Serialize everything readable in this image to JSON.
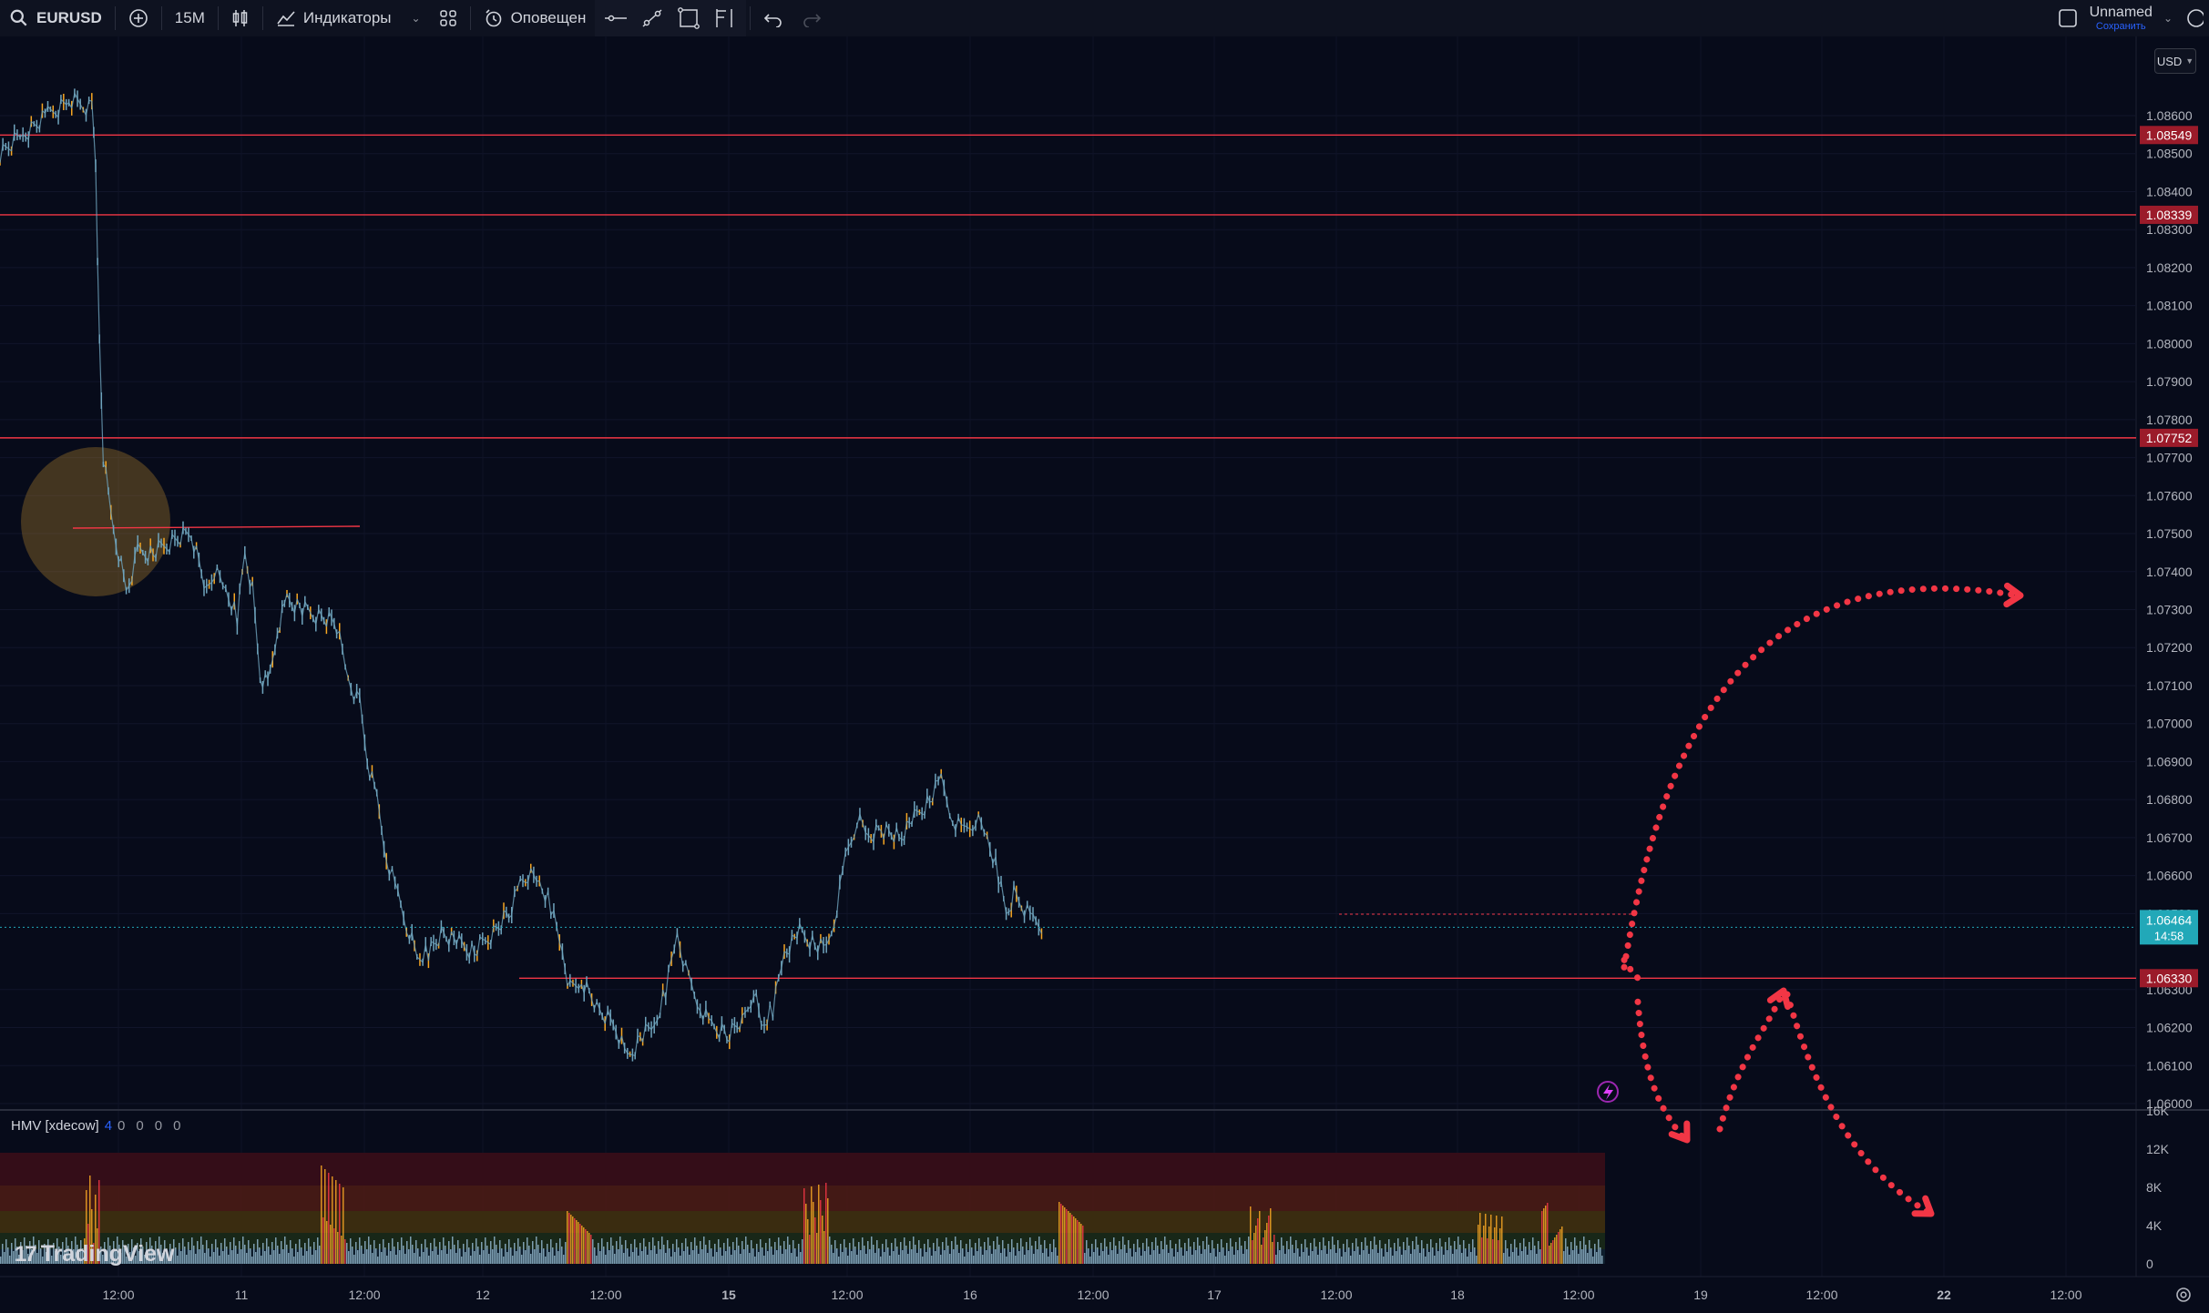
{
  "toolbar": {
    "symbol": "EURUSD",
    "interval": "15M",
    "indicators_label": "Индикаторы",
    "alerts_label": "Оповещен",
    "layout_name": "Unnamed",
    "save_label": "Сохранить"
  },
  "icons": {
    "search": "search-icon",
    "add": "plus-circle-icon",
    "chart_type": "candles-icon",
    "indicators": "indicators-icon",
    "templates": "grid-icon",
    "alerts": "alarm-clock-icon",
    "line_tool": "horizontal-line-icon",
    "trend_tool": "trend-line-icon",
    "rect_tool": "rectangle-icon",
    "fib_tool": "fib-icon",
    "undo": "undo-icon",
    "redo": "redo-icon",
    "fullscreen": "square-icon",
    "camera": "camera-icon",
    "lightning": "lightning-icon",
    "settings": "gear-icon"
  },
  "currency_selector": "USD",
  "indicator_legend": {
    "name": "HMV [xdecow]",
    "values": [
      "4",
      "0",
      "0",
      "0",
      "0"
    ]
  },
  "watermark": "TradingView",
  "colors": {
    "background": "#070b1a",
    "level_line": "#f23645",
    "candle": "#6fa4bd",
    "up_highlight": "#f6a623",
    "current_price_tag": "#22a8b8",
    "arrow": "#f23645",
    "zone_circle": "#b5852f"
  },
  "chart_data": {
    "type": "candlestick",
    "symbol": "EURUSD",
    "interval": "15M",
    "y_axis": {
      "min": 1.06,
      "max": 1.0867,
      "ticks": [
        "1.06000",
        "1.06100",
        "1.06200",
        "1.06300",
        "1.06500",
        "1.06600",
        "1.06700",
        "1.06800",
        "1.06900",
        "1.07000",
        "1.07100",
        "1.07200",
        "1.07300",
        "1.07400",
        "1.07500",
        "1.07600",
        "1.07700",
        "1.07800",
        "1.07900",
        "1.08000",
        "1.08100",
        "1.08200",
        "1.08300",
        "1.08400",
        "1.08500",
        "1.08600"
      ]
    },
    "x_axis": {
      "ticks": [
        "12:00",
        "11",
        "12:00",
        "12",
        "12:00",
        "15",
        "12:00",
        "16",
        "12:00",
        "17",
        "12:00",
        "18",
        "12:00",
        "19",
        "12:00",
        "22",
        "12:00"
      ],
      "bold_ticks": [
        "15",
        "22"
      ]
    },
    "levels": [
      {
        "price": 1.08549,
        "label": "1.08549"
      },
      {
        "price": 1.08339,
        "label": "1.08339"
      },
      {
        "price": 1.07752,
        "label": "1.07752"
      },
      {
        "price": 1.0633,
        "label": "1.06330"
      }
    ],
    "current_price": {
      "price": 1.06464,
      "label": "1.06464",
      "countdown": "14:58"
    },
    "price_path": [
      [
        0,
        1.085
      ],
      [
        12,
        1.0855
      ],
      [
        25,
        1.086
      ],
      [
        36,
        1.0864
      ],
      [
        48,
        1.0862
      ],
      [
        50,
        1.0848
      ],
      [
        52,
        1.08
      ],
      [
        54,
        1.077
      ],
      [
        58,
        1.0755
      ],
      [
        62,
        1.0745
      ],
      [
        66,
        1.0735
      ],
      [
        72,
        1.0745
      ],
      [
        80,
        1.0745
      ],
      [
        90,
        1.0748
      ],
      [
        100,
        1.075
      ],
      [
        108,
        1.0735
      ],
      [
        112,
        1.074
      ],
      [
        118,
        1.0735
      ],
      [
        124,
        1.0728
      ],
      [
        128,
        1.0745
      ],
      [
        132,
        1.0735
      ],
      [
        136,
        1.0712
      ],
      [
        140,
        1.071
      ],
      [
        145,
        1.0725
      ],
      [
        150,
        1.0733
      ],
      [
        158,
        1.073
      ],
      [
        168,
        1.0728
      ],
      [
        176,
        1.0726
      ],
      [
        182,
        1.0712
      ],
      [
        188,
        1.0705
      ],
      [
        192,
        1.069
      ],
      [
        197,
        1.068
      ],
      [
        202,
        1.0665
      ],
      [
        208,
        1.0655
      ],
      [
        214,
        1.0645
      ],
      [
        218,
        1.0638
      ],
      [
        224,
        1.064
      ],
      [
        232,
        1.0645
      ],
      [
        240,
        1.0642
      ],
      [
        248,
        1.064
      ],
      [
        258,
        1.0645
      ],
      [
        266,
        1.065
      ],
      [
        272,
        1.0658
      ],
      [
        276,
        1.066
      ],
      [
        282,
        1.0658
      ],
      [
        288,
        1.0652
      ],
      [
        294,
        1.064
      ],
      [
        298,
        1.063
      ],
      [
        304,
        1.0632
      ],
      [
        312,
        1.0625
      ],
      [
        322,
        1.062
      ],
      [
        328,
        1.0612
      ],
      [
        336,
        1.0618
      ],
      [
        342,
        1.062
      ],
      [
        348,
        1.063
      ],
      [
        354,
        1.0645
      ],
      [
        360,
        1.0632
      ],
      [
        366,
        1.0625
      ],
      [
        372,
        1.062
      ],
      [
        380,
        1.0618
      ],
      [
        388,
        1.0622
      ],
      [
        394,
        1.063
      ],
      [
        398,
        1.062
      ],
      [
        404,
        1.0625
      ],
      [
        410,
        1.064
      ],
      [
        418,
        1.0645
      ],
      [
        426,
        1.0642
      ],
      [
        432,
        1.064
      ],
      [
        436,
        1.0648
      ],
      [
        442,
        1.0665
      ],
      [
        448,
        1.0675
      ],
      [
        454,
        1.067
      ],
      [
        462,
        1.0672
      ],
      [
        470,
        1.067
      ],
      [
        478,
        1.0675
      ],
      [
        486,
        1.068
      ],
      [
        492,
        1.0685
      ],
      [
        498,
        1.0675
      ],
      [
        504,
        1.0672
      ],
      [
        510,
        1.0675
      ],
      [
        516,
        1.067
      ],
      [
        522,
        1.066
      ],
      [
        526,
        1.065
      ],
      [
        530,
        1.0655
      ],
      [
        534,
        1.0652
      ],
      [
        540,
        1.0648
      ],
      [
        546,
        1.0646
      ]
    ],
    "projections": [
      {
        "direction": "up",
        "from": [
          556,
          1.0633
        ],
        "to": [
          698,
          1.0738
        ]
      },
      {
        "direction": "down",
        "from": [
          556,
          1.0633
        ],
        "to": [
          576,
          1.0585
        ]
      },
      {
        "direction": "retest",
        "from": [
          586,
          1.059
        ],
        "to": [
          608,
          1.0628
        ]
      },
      {
        "direction": "down",
        "from": [
          608,
          1.0628
        ],
        "to": [
          660,
          1.0562
        ]
      }
    ],
    "volume": {
      "y_ticks": [
        "0",
        "4K",
        "8K",
        "12K",
        "16K"
      ],
      "indicator": "HMV [xdecow]"
    }
  }
}
